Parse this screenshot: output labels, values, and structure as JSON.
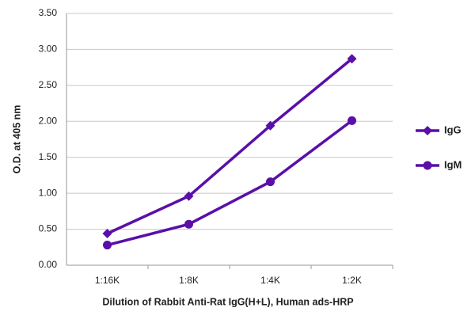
{
  "chart_data": {
    "type": "line",
    "x_label": "Dilution of Rabbit Anti-Rat IgG(H+L), Human ads-HRP",
    "y_label": "O.D. at 405 nm",
    "categories": [
      "1:16K",
      "1:8K",
      "1:4K",
      "1:2K"
    ],
    "series": [
      {
        "name": "IgG",
        "color": "#5a0fa8",
        "marker": "diamond",
        "values": [
          0.44,
          0.96,
          1.94,
          2.87
        ]
      },
      {
        "name": "IgM",
        "color": "#5a0fa8",
        "marker": "circle",
        "values": [
          0.28,
          0.57,
          1.16,
          2.01
        ]
      }
    ],
    "ylim": [
      0,
      3.5
    ],
    "yticks": [
      {
        "value": 0,
        "label": "0.00"
      },
      {
        "value": 0.5,
        "label": "0.50"
      },
      {
        "value": 1,
        "label": "1.00"
      },
      {
        "value": 1.5,
        "label": "1.50"
      },
      {
        "value": 2,
        "label": "2.00"
      },
      {
        "value": 2.5,
        "label": "2.50"
      },
      {
        "value": 3,
        "label": "3.00"
      },
      {
        "value": 3.5,
        "label": "3.50"
      }
    ],
    "grid": true,
    "legend": "right"
  }
}
